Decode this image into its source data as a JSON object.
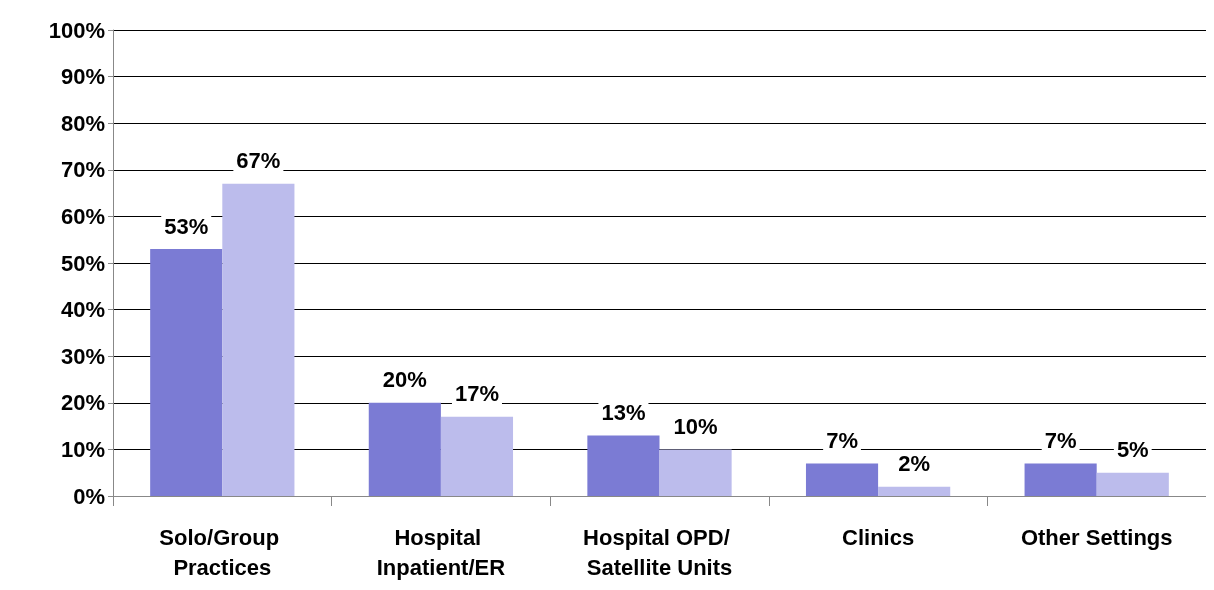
{
  "chart_data": {
    "type": "bar",
    "categories": [
      "Solo/Group Practices",
      "Hospital Inpatient/ER",
      "Hospital OPD/ Satellite Units",
      "Clinics",
      "Other Settings"
    ],
    "series": [
      {
        "color": "#7b7bd4",
        "values": [
          53,
          20,
          13,
          7,
          7
        ],
        "value_labels": [
          "53%",
          "20%",
          "13%",
          "7%",
          "7%"
        ]
      },
      {
        "color": "#bcbcec",
        "values": [
          67,
          17,
          10,
          2,
          5
        ],
        "value_labels": [
          "67%",
          "17%",
          "10%",
          "2%",
          "5%"
        ]
      }
    ],
    "ylim": [
      0,
      100
    ],
    "yticks": [
      {
        "value": 0,
        "label": "0%"
      },
      {
        "value": 10,
        "label": "10%"
      },
      {
        "value": 20,
        "label": "20%"
      },
      {
        "value": 30,
        "label": "30%"
      },
      {
        "value": 40,
        "label": "40%"
      },
      {
        "value": 50,
        "label": "50%"
      },
      {
        "value": 60,
        "label": "60%"
      },
      {
        "value": 70,
        "label": "70%"
      },
      {
        "value": 80,
        "label": "80%"
      },
      {
        "value": 90,
        "label": "90%"
      },
      {
        "value": 100,
        "label": "100%"
      }
    ],
    "grid": "y"
  }
}
